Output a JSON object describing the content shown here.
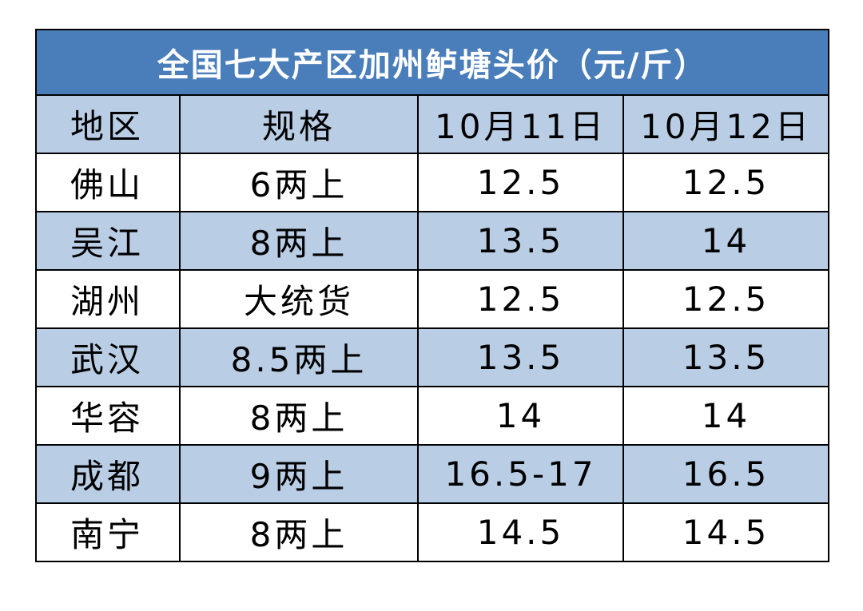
{
  "table": {
    "title": "全国七大产区加州鲈塘头价（元/斤）",
    "header": [
      "地区",
      "规格",
      "10月11日",
      "10月12日"
    ],
    "rows": [
      [
        "佛山",
        "6两上",
        12.5,
        12.5
      ],
      [
        "吴江",
        "8两上",
        13.5,
        14
      ],
      [
        "湖州",
        "大统货",
        12.5,
        12.5
      ],
      [
        "武汉",
        "8.5两上",
        13.5,
        13.5
      ],
      [
        "华容",
        "8两上",
        14,
        14
      ],
      [
        "成都",
        "9两上",
        "16.5-17",
        16.5
      ],
      [
        "南宁",
        "8两上",
        14.5,
        14.5
      ]
    ]
  }
}
